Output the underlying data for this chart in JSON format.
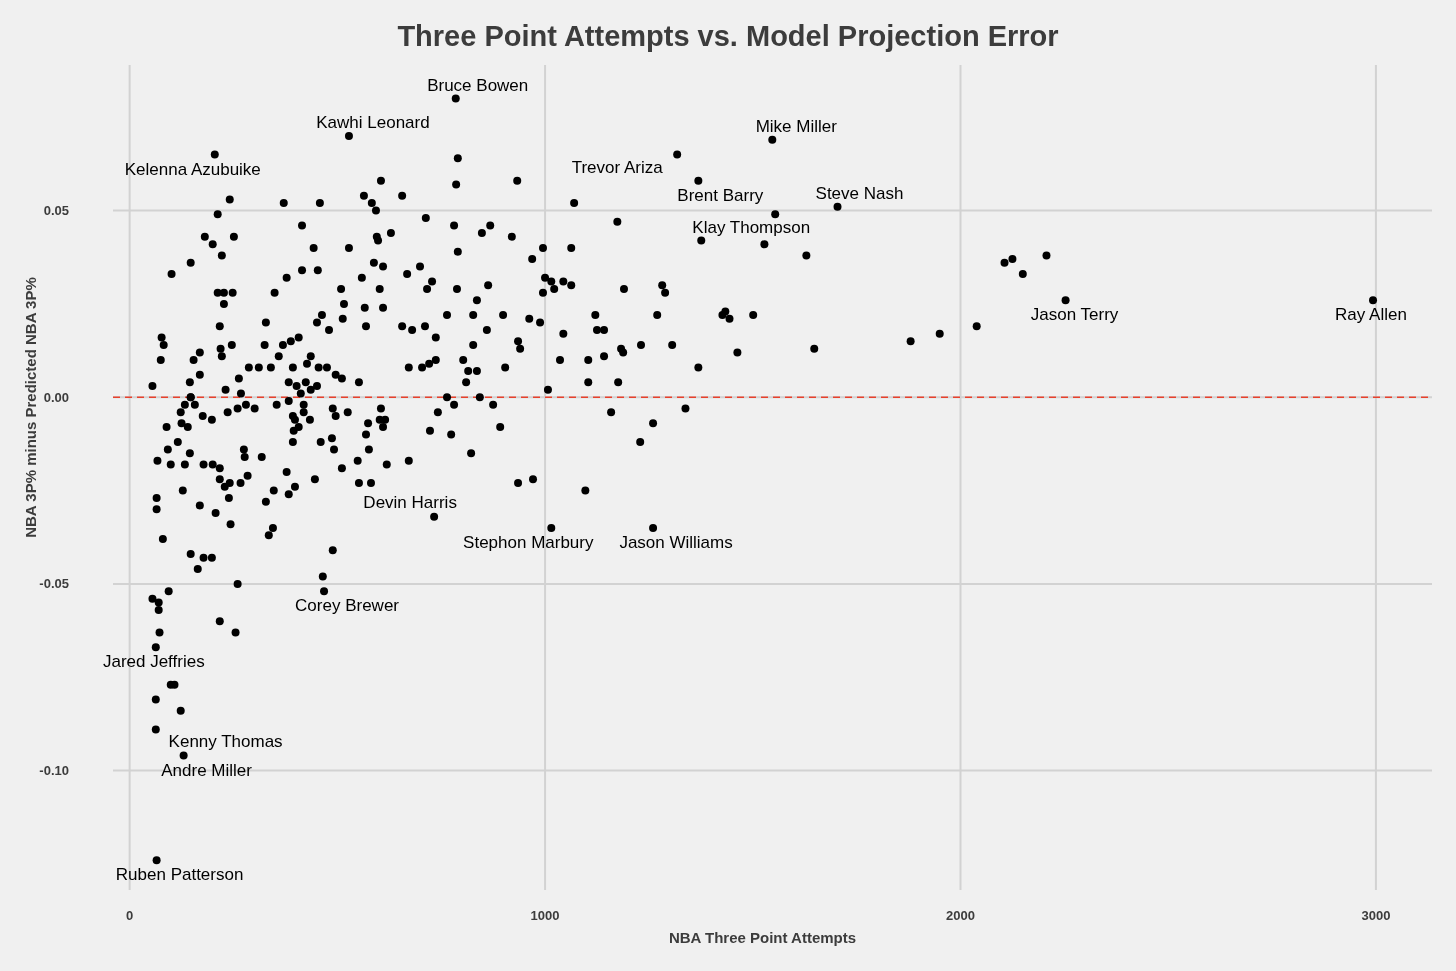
{
  "chart_data": {
    "type": "scatter",
    "title": "Three Point Attempts vs. Model Projection Error",
    "xlabel": "NBA Three Point Attempts",
    "ylabel": "NBA 3P% minus Predicted NBA 3P%",
    "xlim": [
      -40,
      3135
    ],
    "ylim": [
      -0.132,
      0.089
    ],
    "xticks": [
      0,
      1000,
      2000,
      3000
    ],
    "yticks": [
      {
        "value": -0.1,
        "label": "-0.10"
      },
      {
        "value": -0.05,
        "label": "-0.05"
      },
      {
        "value": 0,
        "label": "0.00"
      },
      {
        "value": 0.05,
        "label": "0.05"
      }
    ],
    "grid": true,
    "marker": "circle",
    "ref_lines": [
      {
        "axis": "y",
        "value": 0,
        "color": "#e8412c",
        "line_style": "dashed"
      }
    ],
    "series": [
      {
        "color": "#000000",
        "x": [
          785,
          528,
          205,
          1547,
          1318,
          1369,
          1554,
          1376,
          1528,
          1629,
          1704,
          1070,
          790,
          786,
          933,
          605,
          241,
          212,
          371,
          458,
          415,
          181,
          251,
          200,
          222,
          147,
          101,
          443,
          528,
          453,
          378,
          415,
          212,
          227,
          248,
          227,
          349,
          509,
          516,
          513,
          463,
          451,
          480,
          217,
          328,
          77,
          82,
          75,
          169,
          154,
          169,
          145,
          219,
          222,
          246,
          55,
          147,
          231,
          263,
          287,
          311,
          340,
          325,
          369,
          388,
          407,
          359,
          393,
          436,
          427,
          455,
          475,
          496,
          511,
          383,
          402,
          424,
          412,
          436,
          451,
          268,
          564,
          583,
          593,
          656,
          713,
          781,
          848,
          868,
          920,
          595,
          598,
          629,
          790,
          995,
          1063,
          969,
          588,
          610,
          699,
          668,
          559,
          728,
          716,
          602,
          788,
          863,
          836,
          1000,
          1015,
          1022,
          1044,
          1063,
          995,
          566,
          610,
          764,
          827,
          899,
          962,
          988,
          1121,
          1125,
          569,
          656,
          680,
          711,
          737,
          860,
          1044,
          935,
          940,
          827,
          672,
          704,
          721,
          737,
          803,
          815,
          836,
          810,
          904,
          1036,
          1104,
          1104,
          1007,
          552,
          764,
          843,
          1174,
          1282,
          1289,
          1190,
          1142,
          1270,
          1427,
          1434,
          1444,
          1501,
          1142,
          1183,
          1188,
          1231,
          1306,
          1463,
          1648,
          1369,
          1176,
          1159,
          1338,
          1260,
          1229,
          1097,
          1880,
          1950,
          2039,
          2106,
          2125,
          2150,
          2207,
          2253,
          2993,
          525,
          605,
          574,
          602,
          615,
          610,
          569,
          576,
          549,
          619,
          672,
          552,
          581,
          511,
          742,
          723,
          774,
          781,
          875,
          892,
          822,
          733,
          935,
          971,
          1015,
          1260,
          147,
          133,
          157,
          123,
          176,
          198,
          236,
          260,
          280,
          301,
          354,
          383,
          419,
          393,
          398,
          419,
          434,
          489,
          496,
          89,
          125,
          140,
          395,
          407,
          116,
          393,
          460,
          487,
          492,
          92,
          145,
          67,
          99,
          133,
          178,
          200,
          217,
          217,
          229,
          241,
          267,
          284,
          275,
          277,
          318,
          378,
          446,
          128,
          65,
          65,
          169,
          207,
          239,
          328,
          347,
          383,
          398,
          243,
          345,
          335,
          80,
          147,
          178,
          198,
          164,
          489,
          260,
          465,
          468,
          94,
          55,
          70,
          70,
          217,
          255,
          72,
          63,
          99,
          108,
          63,
          123,
          63,
          130,
          65
        ],
        "values": [
          0.08,
          0.07,
          0.065,
          0.069,
          0.065,
          0.058,
          0.049,
          0.042,
          0.041,
          0.038,
          0.051,
          0.052,
          0.064,
          0.057,
          0.058,
          0.058,
          0.053,
          0.049,
          0.052,
          0.052,
          0.046,
          0.043,
          0.043,
          0.041,
          0.038,
          0.036,
          0.033,
          0.04,
          0.04,
          0.034,
          0.032,
          0.034,
          0.028,
          0.028,
          0.028,
          0.025,
          0.028,
          0.029,
          0.025,
          0.021,
          0.022,
          0.02,
          0.018,
          0.019,
          0.02,
          0.016,
          0.014,
          0.01,
          0.012,
          0.01,
          0.006,
          0.004,
          0.013,
          0.011,
          0.014,
          0.003,
          0.0,
          0.002,
          0.005,
          0.008,
          0.008,
          0.008,
          0.014,
          0.014,
          0.015,
          0.016,
          0.011,
          0.008,
          0.011,
          0.009,
          0.008,
          0.008,
          0.006,
          0.005,
          0.004,
          0.003,
          0.004,
          0.001,
          0.002,
          0.003,
          0.001,
          0.054,
          0.052,
          0.05,
          0.054,
          0.048,
          0.046,
          0.044,
          0.046,
          0.043,
          0.043,
          0.042,
          0.044,
          0.039,
          0.04,
          0.04,
          0.037,
          0.036,
          0.035,
          0.035,
          0.033,
          0.032,
          0.031,
          0.029,
          0.029,
          0.029,
          0.03,
          0.026,
          0.032,
          0.031,
          0.029,
          0.031,
          0.03,
          0.028,
          0.024,
          0.024,
          0.022,
          0.022,
          0.022,
          0.021,
          0.02,
          0.022,
          0.018,
          0.019,
          0.019,
          0.018,
          0.019,
          0.016,
          0.018,
          0.017,
          0.015,
          0.013,
          0.014,
          0.008,
          0.008,
          0.009,
          0.01,
          0.01,
          0.007,
          0.007,
          0.004,
          0.008,
          0.01,
          0.01,
          0.004,
          0.002,
          0.004,
          0.0,
          0.0,
          0.047,
          0.03,
          0.028,
          0.029,
          0.018,
          0.022,
          0.022,
          0.023,
          0.021,
          0.022,
          0.011,
          0.013,
          0.012,
          0.014,
          0.014,
          0.012,
          0.013,
          0.008,
          0.004,
          -0.004,
          -0.003,
          -0.007,
          -0.012,
          -0.025,
          0.015,
          0.017,
          0.019,
          0.036,
          0.037,
          0.033,
          0.038,
          0.026,
          0.026,
          -0.004,
          -0.003,
          -0.007,
          -0.006,
          -0.006,
          -0.008,
          -0.01,
          -0.014,
          -0.017,
          -0.018,
          -0.017,
          -0.023,
          -0.023,
          -0.019,
          -0.004,
          -0.009,
          -0.01,
          -0.002,
          -0.002,
          -0.008,
          -0.015,
          -0.032,
          -0.023,
          -0.022,
          -0.035,
          -0.035,
          0.0,
          -0.002,
          -0.002,
          -0.004,
          -0.005,
          -0.006,
          -0.004,
          -0.003,
          -0.002,
          -0.003,
          -0.002,
          -0.001,
          -0.002,
          -0.005,
          -0.006,
          -0.004,
          -0.006,
          -0.003,
          -0.005,
          -0.008,
          -0.007,
          -0.008,
          -0.009,
          -0.008,
          -0.012,
          -0.012,
          -0.012,
          -0.011,
          -0.014,
          -0.014,
          -0.015,
          -0.017,
          -0.018,
          -0.018,
          -0.018,
          -0.018,
          -0.019,
          -0.022,
          -0.024,
          -0.023,
          -0.023,
          -0.021,
          -0.014,
          -0.016,
          -0.016,
          -0.02,
          -0.022,
          -0.025,
          -0.027,
          -0.03,
          -0.029,
          -0.031,
          -0.027,
          -0.028,
          -0.025,
          -0.026,
          -0.024,
          -0.034,
          -0.035,
          -0.037,
          -0.038,
          -0.042,
          -0.043,
          -0.043,
          -0.046,
          -0.041,
          -0.05,
          -0.048,
          -0.052,
          -0.052,
          -0.054,
          -0.055,
          -0.057,
          -0.06,
          -0.063,
          -0.063,
          -0.067,
          -0.077,
          -0.077,
          -0.081,
          -0.084,
          -0.089,
          -0.096,
          -0.124
        ]
      }
    ],
    "annotations": [
      {
        "text": "Bruce Bowen",
        "x": 785,
        "y": 0.08
      },
      {
        "text": "Kawhi Leonard",
        "x": 528,
        "y": 0.07
      },
      {
        "text": "Kelenna Azubuike",
        "x": 205,
        "y": 0.065
      },
      {
        "text": "Mike Miller",
        "x": 1547,
        "y": 0.069
      },
      {
        "text": "Trevor Ariza",
        "x": 1318,
        "y": 0.065
      },
      {
        "text": "Brent Barry",
        "x": 1369,
        "y": 0.058
      },
      {
        "text": "Steve Nash",
        "x": 1704,
        "y": 0.051
      },
      {
        "text": "Klay Thompson",
        "x": 1376,
        "y": 0.042
      },
      {
        "text": "Jason Terry",
        "x": 2253,
        "y": 0.026
      },
      {
        "text": "Ray Allen",
        "x": 2993,
        "y": 0.026
      },
      {
        "text": "Devin Harris",
        "x": 733,
        "y": -0.032
      },
      {
        "text": "Stephon Marbury",
        "x": 1015,
        "y": -0.035
      },
      {
        "text": "Jason Williams",
        "x": 1260,
        "y": -0.035
      },
      {
        "text": "Corey Brewer",
        "x": 468,
        "y": -0.052
      },
      {
        "text": "Jared Jeffries",
        "x": 63,
        "y": -0.067
      },
      {
        "text": "Kenny Thomas",
        "x": 130,
        "y": -0.096
      },
      {
        "text": "Andre Miller",
        "x": 130,
        "y": -0.096
      },
      {
        "text": "Ruben Patterson",
        "x": 65,
        "y": -0.124
      }
    ]
  }
}
